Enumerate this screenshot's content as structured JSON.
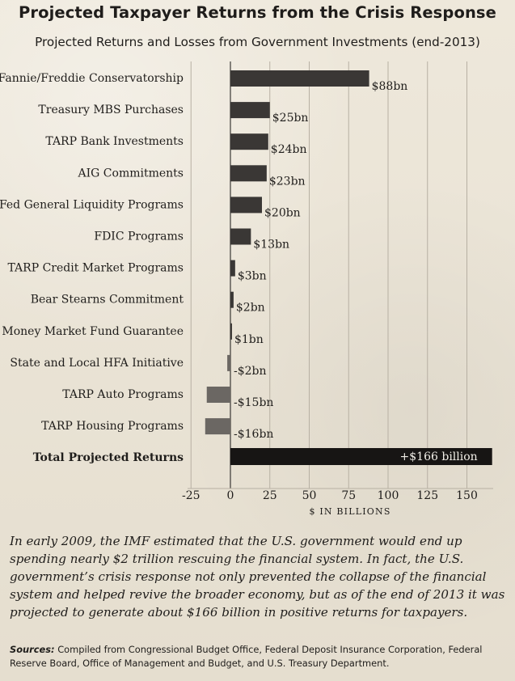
{
  "chart_data": {
    "type": "bar",
    "title": "Projected Taxpayer Returns from the Crisis Response",
    "subtitle": "Projected Returns and Losses from Government Investments (end-2013)",
    "xlabel": "$ IN BILLIONS",
    "ylabel": "",
    "xlim": [
      -25,
      163
    ],
    "xticks": [
      -25,
      0,
      25,
      50,
      75,
      100,
      125,
      150
    ],
    "categories": [
      "Fannie/Freddie Conservatorship",
      "Treasury MBS Purchases",
      "TARP Bank Investments",
      "AIG Commitments",
      "Fed General Liquidity Programs",
      "FDIC Programs",
      "TARP Credit Market Programs",
      "Bear Stearns Commitment",
      "Money Market Fund Guarantee",
      "State and Local HFA Initiative",
      "TARP Auto Programs",
      "TARP Housing Programs"
    ],
    "values": [
      88,
      25,
      24,
      23,
      20,
      13,
      3,
      2,
      1,
      -2,
      -15,
      -16
    ],
    "data_labels": [
      "$88bn",
      "$25bn",
      "$24bn",
      "$23bn",
      "$20bn",
      "$13bn",
      "$3bn",
      "$2bn",
      "$1bn",
      "-$2bn",
      "-$15bn",
      "-$16bn"
    ],
    "total": {
      "label": "Total Projected Returns",
      "value": 166,
      "data_label": "+$166 billion"
    },
    "grid": true,
    "legend": "none",
    "colors": {
      "bar": "#3a3735",
      "negative_bar": "#6b6763",
      "total_bar": "#171514",
      "grid": "#b7b0a3",
      "axis": "#2a2826",
      "total_label": "#f1eee7"
    }
  },
  "caption": "In early 2009, the IMF estimated that the U.S. government would end up spending nearly $2 trillion rescuing the financial system. In fact, the U.S. government’s crisis response not only prevented the collapse of the financial system and helped revive the broader economy, but as of the end of 2013 it was projected to generate about $166 billion in positive returns for taxpayers.",
  "sources": {
    "label": "Sources:",
    "text": "Compiled from Congressional Budget Office, Federal Deposit Insurance Corporation, Federal Reserve Board, Office of Management and Budget, and U.S. Treasury Department."
  }
}
